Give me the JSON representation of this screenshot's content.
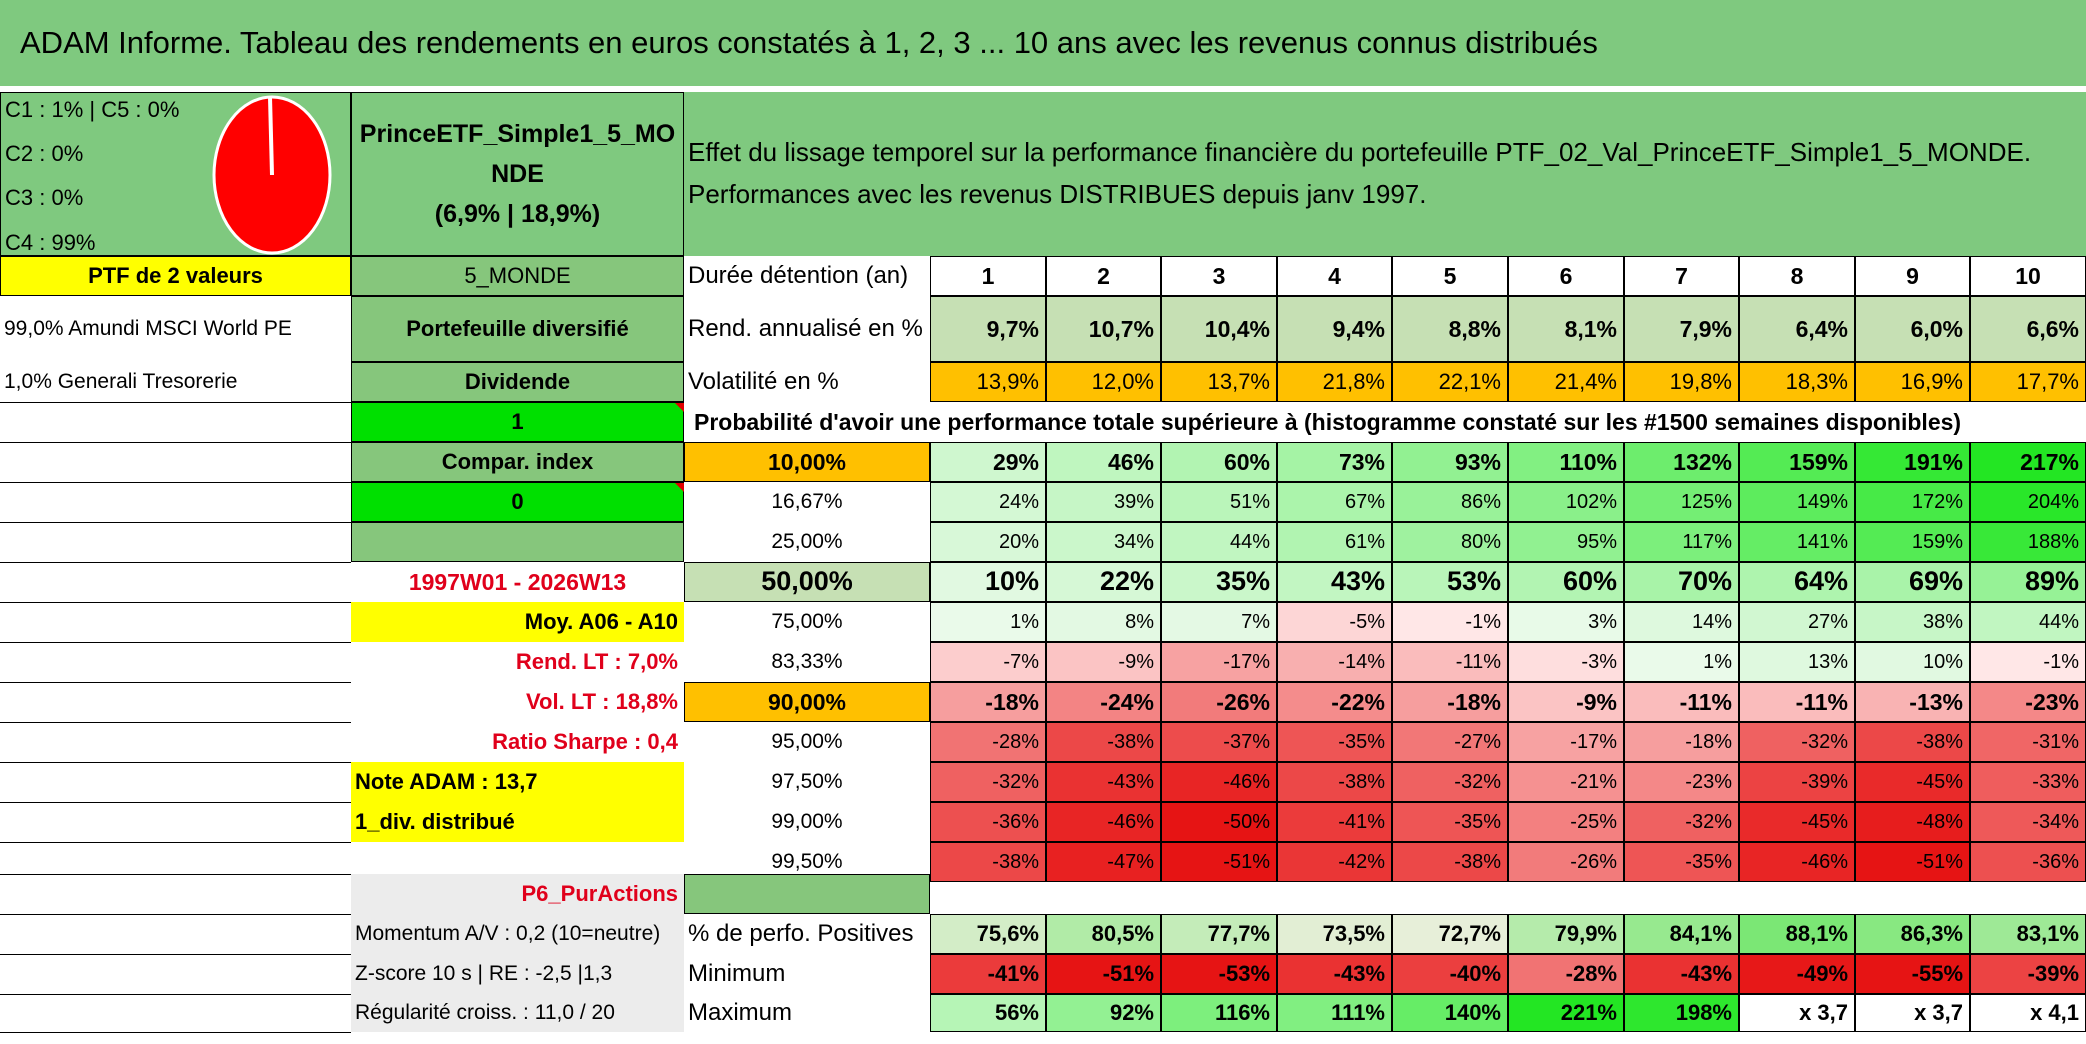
{
  "header": {
    "title": "ADAM Informe. Tableau des rendements en euros constatés à 1, 2, 3 ... 10 ans avec les revenus connus distribués"
  },
  "allocation": {
    "lines": [
      "C1 : 1% | C5 : 0%",
      "C2 : 0%",
      "C3 : 0%",
      "C4 : 99%"
    ],
    "pie": {
      "type": "pie",
      "slices": [
        {
          "label": "C1",
          "value": 1
        },
        {
          "label": "C2",
          "value": 0
        },
        {
          "label": "C3",
          "value": 0
        },
        {
          "label": "C4",
          "value": 99
        },
        {
          "label": "C5",
          "value": 0
        }
      ],
      "colors": [
        "#ffffff",
        "#ff0000"
      ]
    }
  },
  "portfolio": {
    "name": "PrinceETF_Simple1_5_MONDE",
    "stats": "(6,9% | 18,9%)",
    "subtitle": "Effet du lissage temporel sur la performance financière du portefeuille PTF_02_Val_PrinceETF_Simple1_5_MONDE. Performances avec les revenus DISTRIBUES depuis janv 1997.",
    "ptf_label": "PTF de 2 valeurs",
    "code": "5_MONDE",
    "holdings": [
      "99,0% Amundi MSCI World PE",
      "1,0% Generali Tresorerie"
    ],
    "type_label": "Portefeuille diversifié",
    "dividend_label": "Dividende",
    "flag1": "1",
    "index_label": "Compar. index",
    "flag0": "0",
    "period": "1997W01 - 2026W13",
    "avg": "Moy. A06 - A10",
    "rend_lt": "Rend. LT : 7,0%",
    "vol_lt": "Vol. LT : 18,8%",
    "sharpe": "Ratio Sharpe : 0,4",
    "note": "Note ADAM : 13,7",
    "div_info": "1_div. distribué",
    "strategy": "P6_PurActions",
    "momentum": "Momentum A/V : 0,2 (10=neutre)",
    "zscore": "Z-score 10 s | RE : -2,5 |1,3",
    "regularite": "Régularité croiss. : 11,0 / 20"
  },
  "table": {
    "duration_label": "Durée détention (an)",
    "years": [
      "1",
      "2",
      "3",
      "4",
      "5",
      "6",
      "7",
      "8",
      "9",
      "10"
    ],
    "rend_label": "Rend. annualisé en %",
    "rend": [
      "9,7%",
      "10,7%",
      "10,4%",
      "9,4%",
      "8,8%",
      "8,1%",
      "7,9%",
      "6,4%",
      "6,0%",
      "6,6%"
    ],
    "vol_label": "Volatilité en %",
    "vol": [
      "13,9%",
      "12,0%",
      "13,7%",
      "21,8%",
      "22,1%",
      "21,4%",
      "19,8%",
      "18,3%",
      "16,9%",
      "17,7%"
    ],
    "prob_title": "Probabilité d'avoir une performance totale supérieure à (histogramme constaté sur les #1500 semaines disponibles)",
    "quantiles": [
      {
        "p": "10,00%",
        "v": [
          "29%",
          "46%",
          "60%",
          "73%",
          "93%",
          "110%",
          "132%",
          "159%",
          "191%",
          "217%"
        ]
      },
      {
        "p": "16,67%",
        "v": [
          "24%",
          "39%",
          "51%",
          "67%",
          "86%",
          "102%",
          "125%",
          "149%",
          "172%",
          "204%"
        ]
      },
      {
        "p": "25,00%",
        "v": [
          "20%",
          "34%",
          "44%",
          "61%",
          "80%",
          "95%",
          "117%",
          "141%",
          "159%",
          "188%"
        ]
      },
      {
        "p": "50,00%",
        "v": [
          "10%",
          "22%",
          "35%",
          "43%",
          "53%",
          "60%",
          "70%",
          "64%",
          "69%",
          "89%"
        ]
      },
      {
        "p": "75,00%",
        "v": [
          "1%",
          "8%",
          "7%",
          "-5%",
          "-1%",
          "3%",
          "14%",
          "27%",
          "38%",
          "44%"
        ]
      },
      {
        "p": "83,33%",
        "v": [
          "-7%",
          "-9%",
          "-17%",
          "-14%",
          "-11%",
          "-3%",
          "1%",
          "13%",
          "10%",
          "-1%"
        ]
      },
      {
        "p": "90,00%",
        "v": [
          "-18%",
          "-24%",
          "-26%",
          "-22%",
          "-18%",
          "-9%",
          "-11%",
          "-11%",
          "-13%",
          "-23%"
        ]
      },
      {
        "p": "95,00%",
        "v": [
          "-28%",
          "-38%",
          "-37%",
          "-35%",
          "-27%",
          "-17%",
          "-18%",
          "-32%",
          "-38%",
          "-31%"
        ]
      },
      {
        "p": "97,50%",
        "v": [
          "-32%",
          "-43%",
          "-46%",
          "-38%",
          "-32%",
          "-21%",
          "-23%",
          "-39%",
          "-45%",
          "-33%"
        ]
      },
      {
        "p": "99,00%",
        "v": [
          "-36%",
          "-46%",
          "-50%",
          "-41%",
          "-35%",
          "-25%",
          "-32%",
          "-45%",
          "-48%",
          "-34%"
        ]
      },
      {
        "p": "99,50%",
        "v": [
          "-38%",
          "-47%",
          "-51%",
          "-42%",
          "-38%",
          "-26%",
          "-35%",
          "-46%",
          "-51%",
          "-36%"
        ]
      }
    ],
    "pos_label": "% de perfo. Positives",
    "pos": [
      "75,6%",
      "80,5%",
      "77,7%",
      "73,5%",
      "72,7%",
      "79,9%",
      "84,1%",
      "88,1%",
      "86,3%",
      "83,1%"
    ],
    "min_label": "Minimum",
    "min": [
      "-41%",
      "-51%",
      "-53%",
      "-43%",
      "-40%",
      "-28%",
      "-43%",
      "-49%",
      "-55%",
      "-39%"
    ],
    "max_label": "Maximum",
    "max": [
      "56%",
      "92%",
      "116%",
      "111%",
      "140%",
      "221%",
      "198%",
      "x 3,7",
      "x 3,7",
      "x 4,1"
    ]
  },
  "colors": {
    "header_green": "#7fc97f",
    "yellow": "#ffff00",
    "bright_green": "#00e000",
    "orange": "#ffc000",
    "red_text": "#e0001b"
  }
}
